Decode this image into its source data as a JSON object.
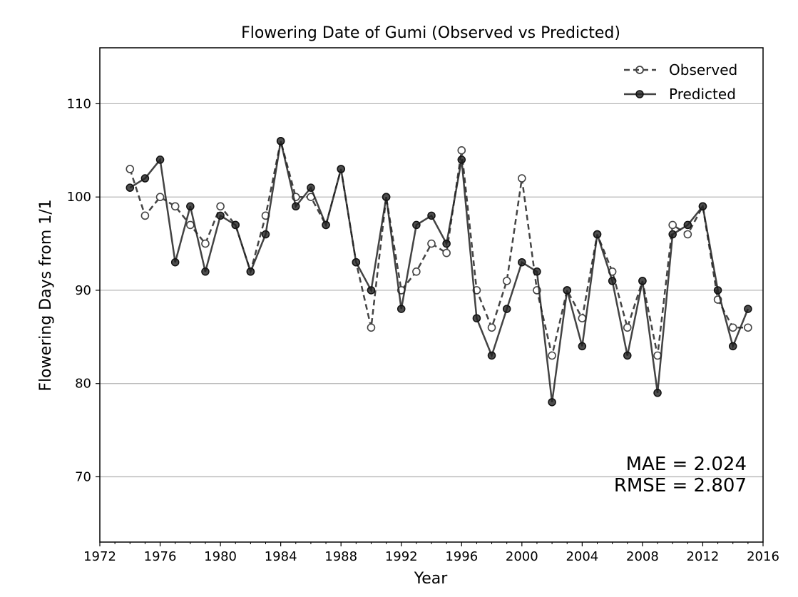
{
  "chart_data": {
    "type": "line",
    "title": "Flowering Date of Gumi (Observed vs Predicted)",
    "xlabel": "Year",
    "ylabel": "Flowering Days from 1/1",
    "xlim": [
      1972,
      2016
    ],
    "ylim": [
      63,
      116
    ],
    "x_ticks": [
      1972,
      1976,
      1980,
      1984,
      1988,
      1992,
      1996,
      2000,
      2004,
      2008,
      2012,
      2016
    ],
    "y_ticks": [
      70,
      80,
      90,
      100,
      110
    ],
    "grid": "horizontal",
    "legend_position": "top-right",
    "x": [
      1974,
      1975,
      1976,
      1977,
      1978,
      1979,
      1980,
      1981,
      1982,
      1983,
      1984,
      1985,
      1986,
      1987,
      1988,
      1989,
      1990,
      1991,
      1992,
      1993,
      1994,
      1995,
      1996,
      1997,
      1998,
      1999,
      2000,
      2001,
      2002,
      2003,
      2004,
      2005,
      2006,
      2007,
      2008,
      2009,
      2010,
      2011,
      2012,
      2013,
      2014,
      2015
    ],
    "series": [
      {
        "name": "Observed",
        "style": "dashed-open",
        "color": "#444444",
        "values": [
          103,
          98,
          100,
          99,
          97,
          95,
          99,
          97,
          92,
          98,
          106,
          100,
          100,
          97,
          103,
          93,
          86,
          100,
          90,
          92,
          95,
          94,
          105,
          90,
          86,
          91,
          102,
          90,
          83,
          90,
          87,
          96,
          92,
          86,
          91,
          83,
          97,
          96,
          99,
          89,
          86,
          86
        ]
      },
      {
        "name": "Predicted",
        "style": "solid-filled",
        "color": "#222222",
        "values": [
          101,
          102,
          104,
          93,
          99,
          92,
          98,
          97,
          92,
          96,
          106,
          99,
          101,
          97,
          103,
          93,
          90,
          100,
          88,
          97,
          98,
          95,
          104,
          87,
          83,
          88,
          93,
          92,
          78,
          90,
          84,
          96,
          91,
          83,
          91,
          79,
          96,
          97,
          99,
          90,
          84,
          88
        ]
      }
    ],
    "annotations": {
      "mae": "MAE = 2.024",
      "rmse": "RMSE = 2.807"
    }
  }
}
